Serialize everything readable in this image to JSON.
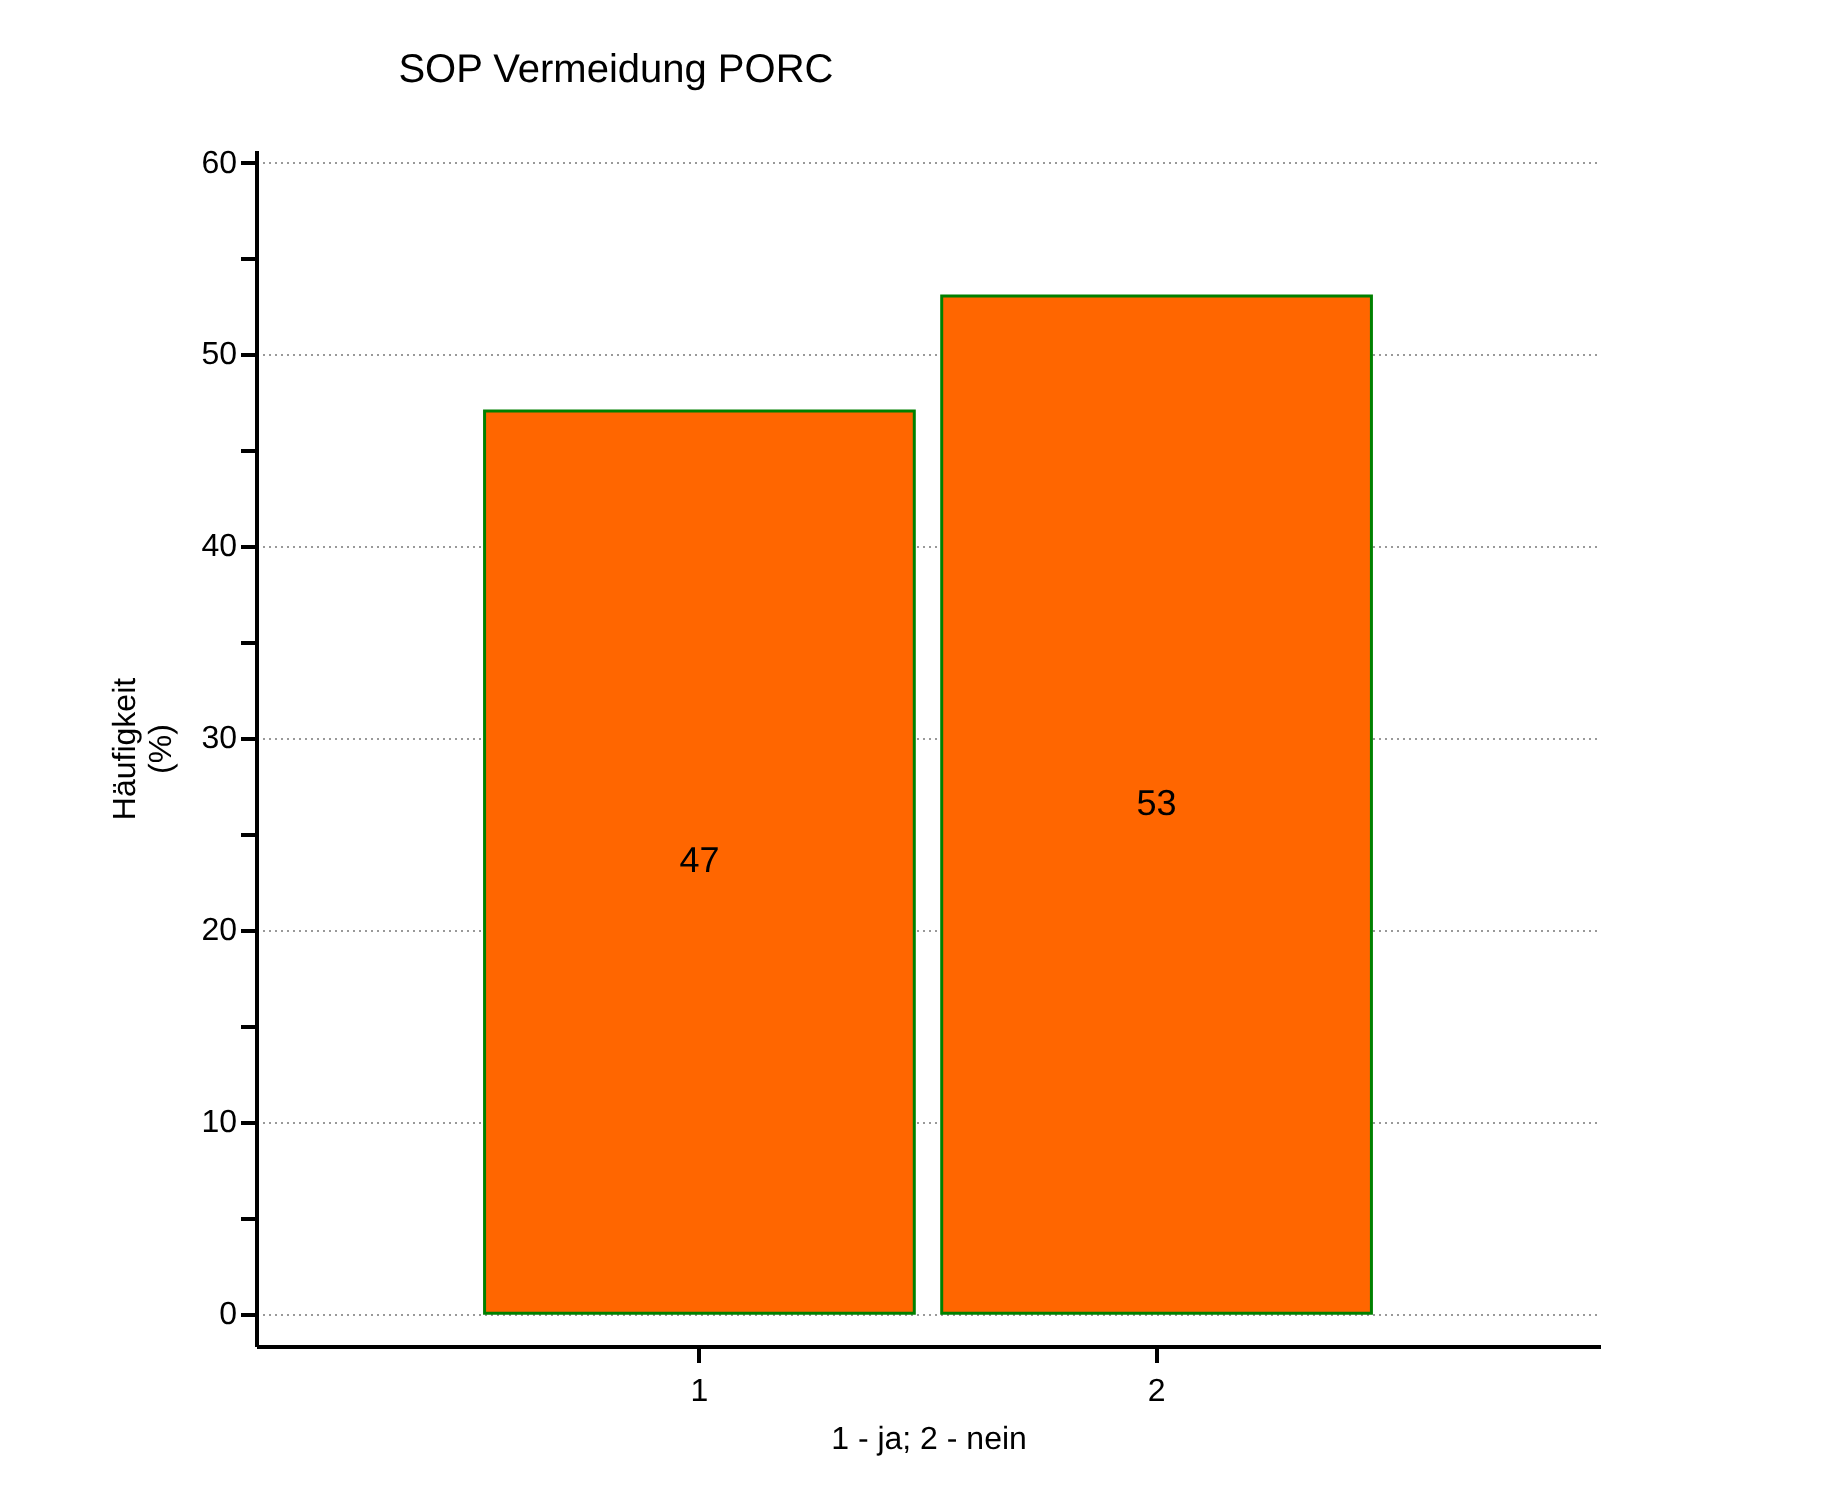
{
  "chart_data": {
    "type": "bar",
    "title": "SOP Vermeidung PORC",
    "xlabel": "1 - ja; 2 - nein",
    "ylabel": "Häufigkeit\n(%)",
    "categories": [
      "1",
      "2"
    ],
    "values": [
      47,
      53
    ],
    "color": "#ff6600",
    "data_labels": true,
    "ylim": [
      -1.7,
      60.6
    ],
    "yticks": [
      0,
      {
        "value": 5,
        "label": null
      },
      10,
      {
        "value": 15,
        "label": null
      },
      20,
      {
        "value": 25,
        "label": null
      },
      30,
      {
        "value": 35,
        "label": null
      },
      40,
      {
        "value": 45,
        "label": null
      },
      50,
      {
        "value": 55,
        "label": null
      },
      60
    ],
    "grid": "y"
  }
}
